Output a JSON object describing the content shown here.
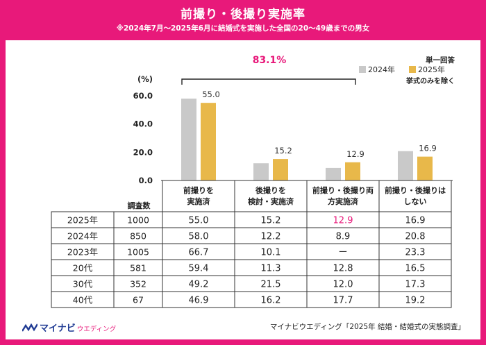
{
  "header": {
    "title": "前撮り・後撮り実施率",
    "subtitle": "※2024年7月～2025年6月に結婚式を実施した全国の20～49歳までの男女"
  },
  "colors": {
    "accent": "#e8197a",
    "bar2024": "#c9c9c9",
    "bar2025": "#e8b84a"
  },
  "chart_data": {
    "type": "bar",
    "ylabel": "(%)",
    "ylim": [
      0,
      60
    ],
    "yticks": [
      "0.0",
      "20.0",
      "40.0",
      "60.0"
    ],
    "categories": [
      "前撮りを\n実施済",
      "後撮りを\n検討・実施済",
      "前撮り・後撮り両\n方実施済",
      "前撮り・後撮りは\nしない"
    ],
    "series": [
      {
        "name": "2024年",
        "values": [
          58.0,
          12.2,
          8.9,
          20.8
        ]
      },
      {
        "name": "2025年",
        "values": [
          55.0,
          15.2,
          12.9,
          16.9
        ]
      }
    ],
    "data_labels": [
      "55.0",
      "15.2",
      "12.9",
      "16.9"
    ],
    "bracket_label": "83.1%",
    "legend": {
      "title": "単一回答",
      "note": "挙式のみを除く",
      "placement": "top-right"
    }
  },
  "table": {
    "count_header": "調査数",
    "rows": [
      {
        "label": "2025年",
        "n": "1000",
        "cells": [
          "55.0",
          "15.2",
          "12.9",
          "16.9"
        ]
      },
      {
        "label": "2024年",
        "n": "850",
        "cells": [
          "58.0",
          "12.2",
          "8.9",
          "20.8"
        ]
      },
      {
        "label": "2023年",
        "n": "1005",
        "cells": [
          "66.7",
          "10.1",
          "ー",
          "23.3"
        ]
      },
      {
        "label": "20代",
        "n": "581",
        "cells": [
          "59.4",
          "11.3",
          "12.8",
          "16.5"
        ]
      },
      {
        "label": "30代",
        "n": "352",
        "cells": [
          "49.2",
          "21.5",
          "12.0",
          "17.3"
        ]
      },
      {
        "label": "40代",
        "n": "67",
        "cells": [
          "46.9",
          "16.2",
          "17.7",
          "19.2"
        ]
      }
    ]
  },
  "footer": {
    "logo_main": "マイナビ",
    "logo_sub": "ウエディング",
    "source": "マイナビウエディング「2025年 結婚・結婚式の実態調査」"
  }
}
